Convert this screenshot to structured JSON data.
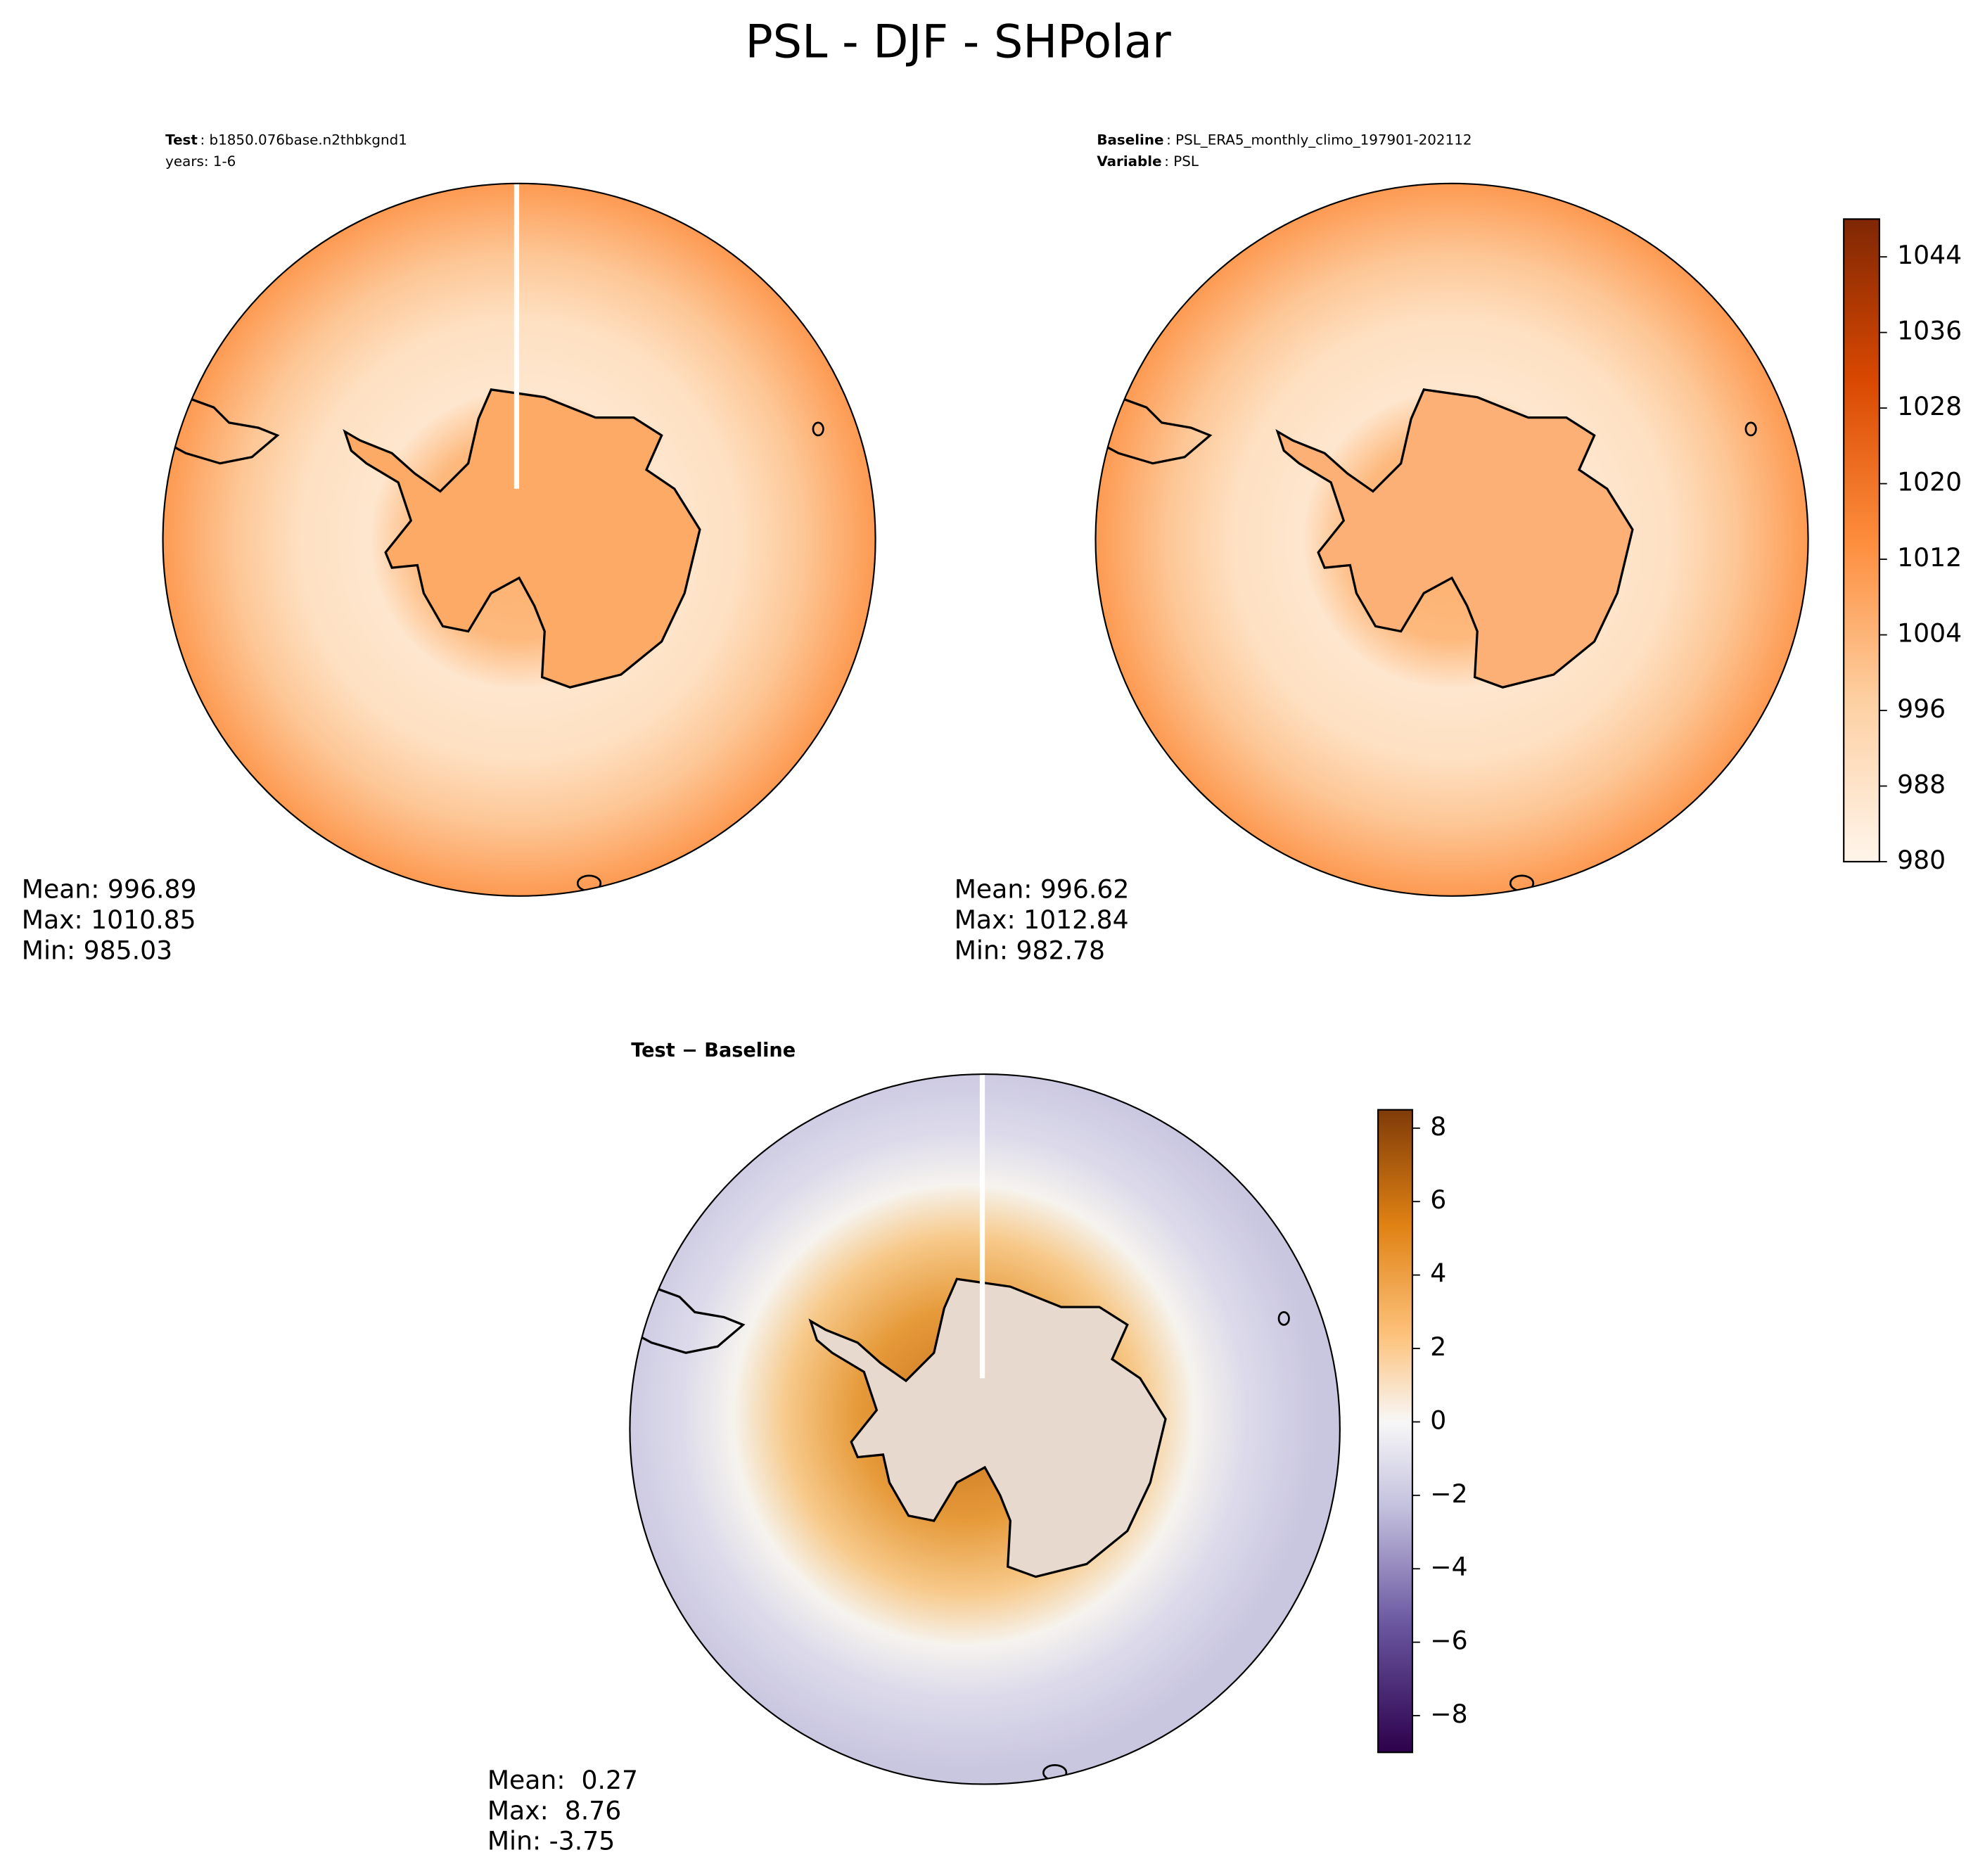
{
  "title": "PSL - DJF - SHPolar",
  "chart_data": [
    {
      "type": "map",
      "header": [
        {
          "label": "Test",
          "text": ": b1850.076base.n2thbkgnd1"
        },
        {
          "text": "years: 1-6"
        }
      ],
      "stats": [
        "Mean: 996.89",
        "Max: 1010.85",
        "Min: 985.03"
      ]
    },
    {
      "type": "map",
      "header": [
        {
          "label": "Baseline",
          "text": ": PSL_ERA5_monthly_climo_197901-202112"
        },
        {
          "label": "Variable",
          "text": ": PSL"
        }
      ],
      "stats": [
        "Mean: 996.62",
        "Max: 1012.84",
        "Min: 982.78"
      ],
      "colorbar": {
        "cmap": "Oranges",
        "ylim": [
          980,
          1048
        ],
        "yticks": [
          980,
          988,
          996,
          1004,
          1012,
          1020,
          1028,
          1036,
          1044
        ]
      }
    },
    {
      "type": "map",
      "title": "Test − Baseline",
      "stats": [
        "Mean:  0.27",
        "Max:  8.76",
        "Min: -3.75"
      ],
      "colorbar": {
        "cmap": "PuOr_r",
        "ylim": [
          -9,
          8.5
        ],
        "yticks": [
          {
            "value": -8,
            "label": "−8"
          },
          {
            "value": -6,
            "label": "−6"
          },
          {
            "value": -4,
            "label": "−4"
          },
          {
            "value": -2,
            "label": "−2"
          },
          0,
          2,
          4,
          6,
          8
        ]
      }
    }
  ]
}
